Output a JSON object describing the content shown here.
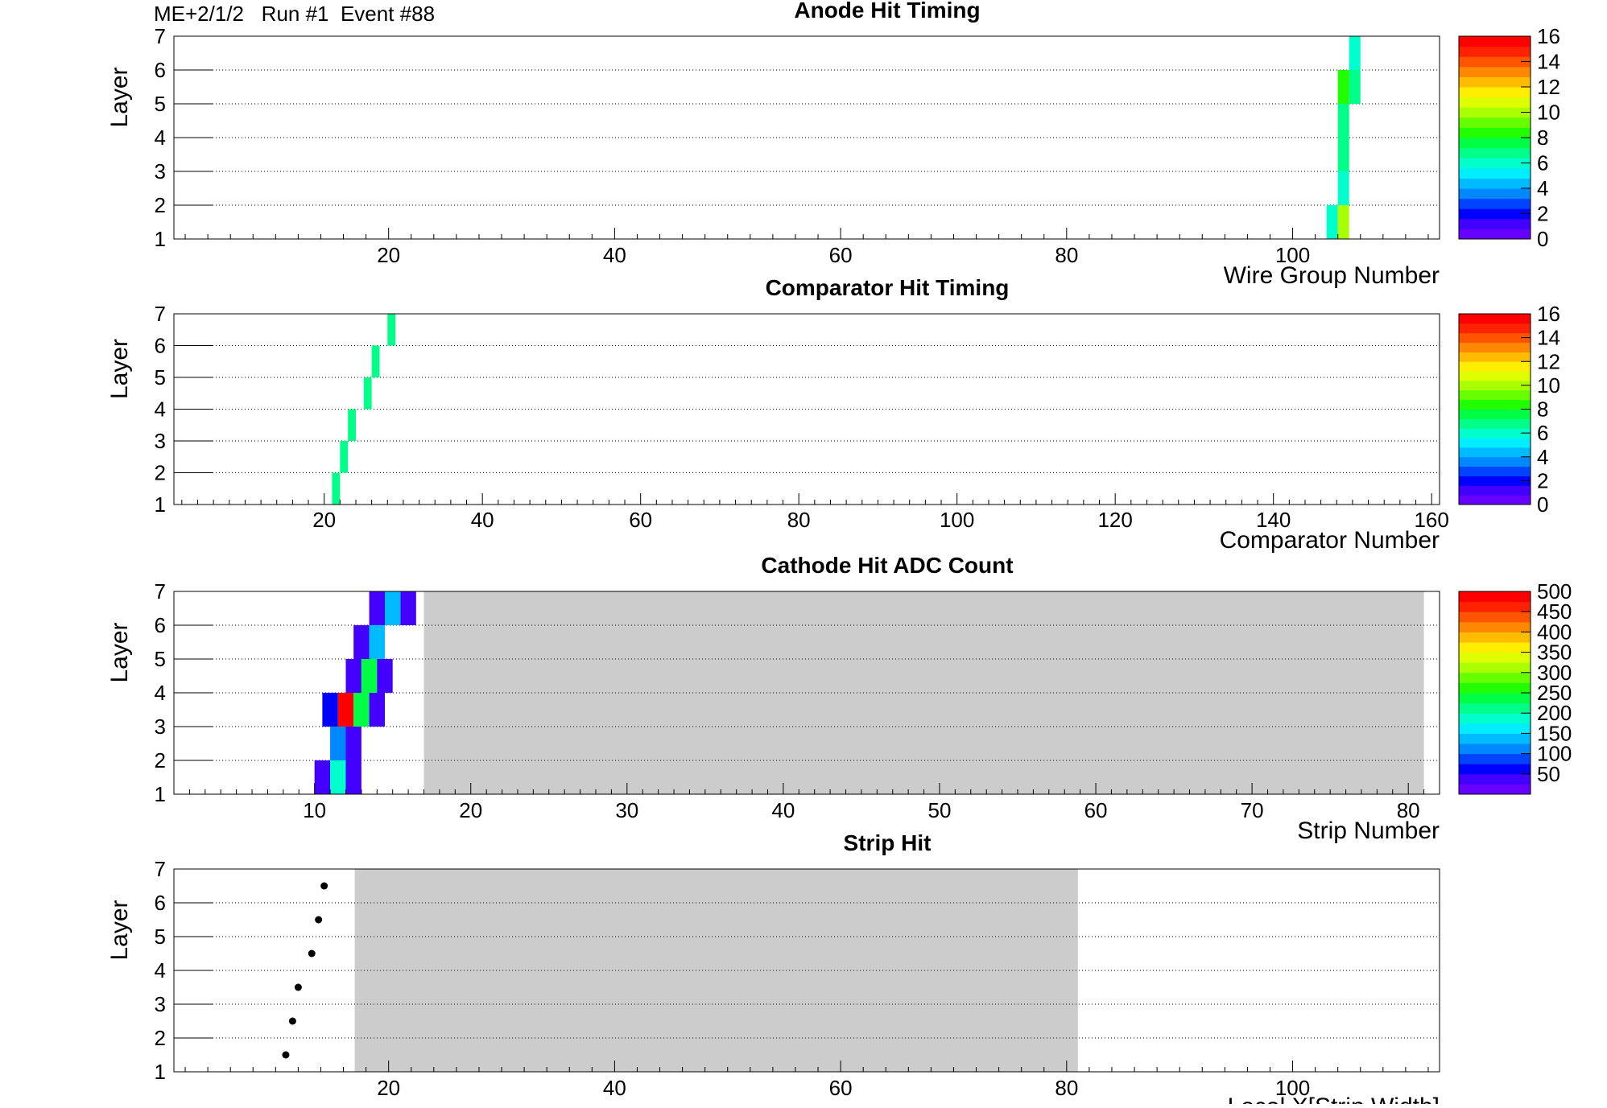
{
  "header": {
    "info": "ME+2/1/2   Run #1  Event #88"
  },
  "charts": [
    {
      "id": "anode",
      "title": "Anode Hit Timing",
      "xlabel": "Wire Group Number",
      "ylabel": "Layer",
      "xticks": [
        "20",
        "40",
        "60",
        "80",
        "100"
      ],
      "yticks": [
        "1",
        "2",
        "3",
        "4",
        "5",
        "6",
        "7"
      ],
      "palette": {
        "ticks": [
          "0",
          "2",
          "4",
          "6",
          "8",
          "10",
          "12",
          "14",
          "16"
        ]
      }
    },
    {
      "id": "comparator",
      "title": "Comparator Hit Timing",
      "xlabel": "Comparator Number",
      "ylabel": "Layer",
      "xticks": [
        "20",
        "40",
        "60",
        "80",
        "100",
        "120",
        "140",
        "160"
      ],
      "yticks": [
        "1",
        "2",
        "3",
        "4",
        "5",
        "6",
        "7"
      ],
      "palette": {
        "ticks": [
          "0",
          "2",
          "4",
          "6",
          "8",
          "10",
          "12",
          "14",
          "16"
        ]
      }
    },
    {
      "id": "cathode",
      "title": "Cathode Hit ADC Count",
      "xlabel": "Strip Number",
      "ylabel": "Layer",
      "xticks": [
        "10",
        "20",
        "30",
        "40",
        "50",
        "60",
        "70",
        "80"
      ],
      "yticks": [
        "1",
        "2",
        "3",
        "4",
        "5",
        "6",
        "7"
      ],
      "palette": {
        "ticks": [
          "50",
          "100",
          "150",
          "200",
          "250",
          "300",
          "350",
          "400",
          "450",
          "500"
        ]
      }
    },
    {
      "id": "strip",
      "title": "Strip Hit",
      "xlabel": "Local X[Strip Width]",
      "ylabel": "Layer",
      "xticks": [
        "20",
        "40",
        "60",
        "80",
        "100"
      ],
      "yticks": [
        "1",
        "2",
        "3",
        "4",
        "5",
        "6",
        "7"
      ]
    }
  ],
  "chart_data": [
    {
      "type": "heatmap",
      "title": "Anode Hit Timing",
      "xlabel": "Wire Group Number",
      "ylabel": "Layer",
      "xlim": [
        1,
        113
      ],
      "ylim": [
        1,
        7
      ],
      "z_range": [
        0,
        16
      ],
      "grid": "horizontal dotted",
      "cells": [
        {
          "x": [
            103,
            104
          ],
          "layer": 1,
          "z": 6
        },
        {
          "x": [
            104,
            105
          ],
          "layer": 1,
          "z": 10
        },
        {
          "x": [
            104,
            105
          ],
          "layer": 2,
          "z": 6
        },
        {
          "x": [
            104,
            105
          ],
          "layer": 3,
          "z": 7
        },
        {
          "x": [
            104,
            105
          ],
          "layer": 4,
          "z": 7
        },
        {
          "x": [
            104,
            105
          ],
          "layer": 5,
          "z": 8
        },
        {
          "x": [
            105,
            106
          ],
          "layer": 5,
          "z": 7
        },
        {
          "x": [
            105,
            106
          ],
          "layer": 6,
          "z": 6
        }
      ]
    },
    {
      "type": "heatmap",
      "title": "Comparator Hit Timing",
      "xlabel": "Comparator Number",
      "ylabel": "Layer",
      "xlim": [
        1,
        161
      ],
      "ylim": [
        1,
        7
      ],
      "z_range": [
        0,
        16
      ],
      "grid": "horizontal dotted",
      "cells": [
        {
          "x": [
            21,
            22
          ],
          "layer": 1,
          "z": 7
        },
        {
          "x": [
            22,
            23
          ],
          "layer": 2,
          "z": 7
        },
        {
          "x": [
            23,
            24
          ],
          "layer": 3,
          "z": 7
        },
        {
          "x": [
            25,
            26
          ],
          "layer": 4,
          "z": 7
        },
        {
          "x": [
            26,
            27
          ],
          "layer": 5,
          "z": 7
        },
        {
          "x": [
            28,
            29
          ],
          "layer": 6,
          "z": 7
        }
      ]
    },
    {
      "type": "heatmap",
      "title": "Cathode Hit ADC Count",
      "xlabel": "Strip Number",
      "ylabel": "Layer",
      "xlim": [
        1,
        82
      ],
      "ylim": [
        1,
        7
      ],
      "z_range": [
        0,
        500
      ],
      "grid": "horizontal dotted",
      "shaded_x": [
        17,
        81
      ],
      "cells": [
        {
          "x": [
            10,
            11
          ],
          "layer": 1,
          "z": 30
        },
        {
          "x": [
            11,
            12
          ],
          "layer": 1,
          "z": 180
        },
        {
          "x": [
            12,
            13
          ],
          "layer": 1,
          "z": 30
        },
        {
          "x": [
            11,
            12
          ],
          "layer": 2,
          "z": 100
        },
        {
          "x": [
            12,
            13
          ],
          "layer": 2,
          "z": 30
        },
        {
          "x": [
            10.5,
            11.5
          ],
          "layer": 3,
          "z": 70
        },
        {
          "x": [
            11.5,
            12.5
          ],
          "layer": 3,
          "z": 490
        },
        {
          "x": [
            12.5,
            13.5
          ],
          "layer": 3,
          "z": 240
        },
        {
          "x": [
            13.5,
            14.5
          ],
          "layer": 3,
          "z": 30
        },
        {
          "x": [
            12,
            13
          ],
          "layer": 4,
          "z": 30
        },
        {
          "x": [
            13,
            14
          ],
          "layer": 4,
          "z": 240
        },
        {
          "x": [
            14,
            15
          ],
          "layer": 4,
          "z": 30
        },
        {
          "x": [
            12.5,
            13.5
          ],
          "layer": 5,
          "z": 30
        },
        {
          "x": [
            13.5,
            14.5
          ],
          "layer": 5,
          "z": 130
        },
        {
          "x": [
            13.5,
            14.5
          ],
          "layer": 6,
          "z": 30
        },
        {
          "x": [
            14.5,
            15.5
          ],
          "layer": 6,
          "z": 130
        },
        {
          "x": [
            15.5,
            16.5
          ],
          "layer": 6,
          "z": 30
        }
      ]
    },
    {
      "type": "scatter",
      "title": "Strip Hit",
      "xlabel": "Local X[Strip Width]",
      "ylabel": "Layer",
      "xlim": [
        1,
        113
      ],
      "ylim": [
        1,
        7
      ],
      "grid": "horizontal dotted",
      "shaded_x": [
        17,
        81
      ],
      "points": [
        {
          "x": 10.9,
          "y": 1.5
        },
        {
          "x": 11.5,
          "y": 2.5
        },
        {
          "x": 12.0,
          "y": 3.5
        },
        {
          "x": 13.2,
          "y": 4.5
        },
        {
          "x": 13.8,
          "y": 5.5
        },
        {
          "x": 14.3,
          "y": 6.5
        }
      ]
    }
  ]
}
